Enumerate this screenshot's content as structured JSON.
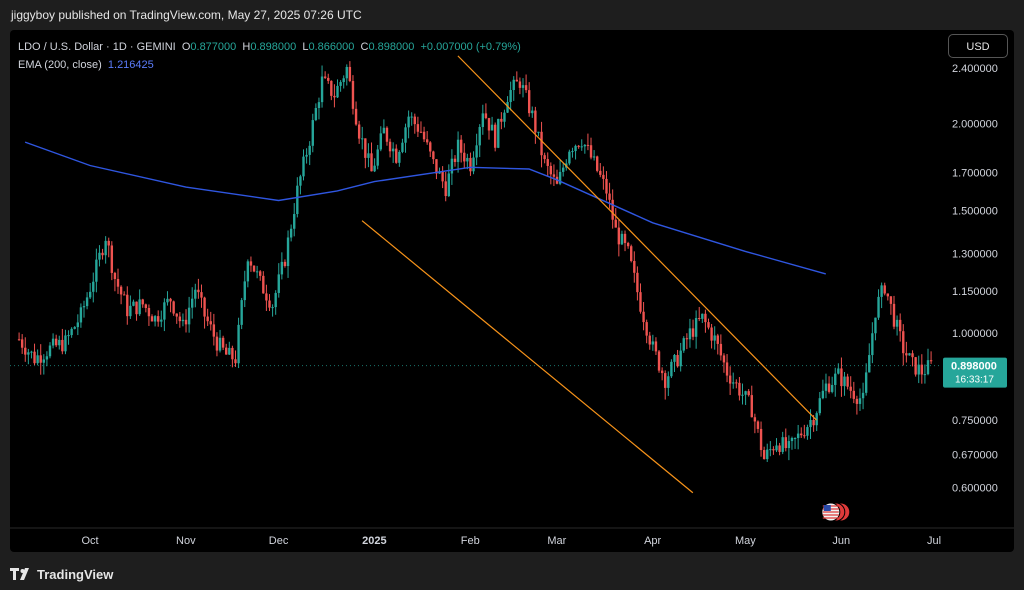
{
  "header": {
    "publish_text": "jiggyboy published on TradingView.com, May 27, 2025 07:26 UTC"
  },
  "legend": {
    "symbol": "LDO / U.S. Dollar · 1D · GEMINI",
    "open_label": "O",
    "open": "0.877000",
    "high_label": "H",
    "high": "0.898000",
    "low_label": "L",
    "low": "0.866000",
    "close_label": "C",
    "close": "0.898000",
    "change": "+0.007000 (+0.79%)",
    "ema_label": "EMA (200, close)",
    "ema_value": "1.216425"
  },
  "toolbar": {
    "currency": "USD"
  },
  "footer": {
    "brand": "TradingView",
    "logo_icon": "tradingview-logo-icon"
  },
  "colors": {
    "up": "#26a69a",
    "down": "#ef5350",
    "ema": "#2f56e0",
    "channel": "#f7931a",
    "price_label_bg": "#26a69a"
  },
  "chart_data": {
    "type": "candlestick",
    "price_scale": "log",
    "x": [
      "Oct",
      "Nov",
      "Dec",
      "2025",
      "Feb",
      "Mar",
      "Apr",
      "May",
      "Jun",
      "Jul"
    ],
    "y_ticks": [
      "2.400000",
      "2.000000",
      "1.700000",
      "1.500000",
      "1.300000",
      "1.150000",
      "1.000000",
      "0.750000",
      "0.670000",
      "0.600000"
    ],
    "last_price": "0.898000",
    "countdown": "16:33:17",
    "ylim": [
      0.55,
      2.6
    ],
    "series": [
      {
        "name": "EMA (200, close)",
        "type": "line",
        "points": [
          [
            "Sep 10",
            1.88
          ],
          [
            "Oct 1",
            1.74
          ],
          [
            "Nov 1",
            1.62
          ],
          [
            "Dec 1",
            1.55
          ],
          [
            "Dec 20",
            1.6
          ],
          [
            "2025",
            1.65
          ],
          [
            "Feb 1",
            1.73
          ],
          [
            "Feb 20",
            1.72
          ],
          [
            "Mar 1",
            1.66
          ],
          [
            "Apr 1",
            1.44
          ],
          [
            "May 1",
            1.31
          ],
          [
            "May 27",
            1.216
          ]
        ]
      },
      {
        "name": "close",
        "type": "candles",
        "closes": [
          [
            0,
            0.98
          ],
          [
            5,
            0.92
          ],
          [
            10,
            0.95
          ],
          [
            15,
            0.97
          ],
          [
            20,
            1.06
          ],
          [
            25,
            1.24
          ],
          [
            28,
            1.38
          ],
          [
            31,
            1.2
          ],
          [
            35,
            1.08
          ],
          [
            40,
            1.1
          ],
          [
            44,
            1.05
          ],
          [
            49,
            1.12
          ],
          [
            53,
            1.02
          ],
          [
            57,
            1.16
          ],
          [
            60,
            1.06
          ],
          [
            64,
            0.97
          ],
          [
            67,
            0.93
          ],
          [
            70,
            0.92
          ],
          [
            74,
            1.3
          ],
          [
            78,
            1.18
          ],
          [
            82,
            1.1
          ],
          [
            86,
            1.28
          ],
          [
            90,
            1.6
          ],
          [
            94,
            1.9
          ],
          [
            98,
            2.3
          ],
          [
            102,
            2.2
          ],
          [
            106,
            2.4
          ],
          [
            110,
            1.95
          ],
          [
            114,
            1.7
          ],
          [
            118,
            1.95
          ],
          [
            122,
            1.8
          ],
          [
            126,
            2.05
          ],
          [
            130,
            1.95
          ],
          [
            134,
            1.75
          ],
          [
            138,
            1.62
          ],
          [
            142,
            1.85
          ],
          [
            146,
            1.75
          ],
          [
            150,
            2.1
          ],
          [
            154,
            1.9
          ],
          [
            158,
            2.2
          ],
          [
            162,
            2.3
          ],
          [
            166,
            2.05
          ],
          [
            170,
            1.75
          ],
          [
            174,
            1.62
          ],
          [
            178,
            1.85
          ],
          [
            182,
            1.9
          ],
          [
            186,
            1.75
          ],
          [
            190,
            1.6
          ],
          [
            193,
            1.4
          ],
          [
            197,
            1.3
          ],
          [
            201,
            1.1
          ],
          [
            205,
            0.95
          ],
          [
            209,
            0.86
          ],
          [
            213,
            0.92
          ],
          [
            217,
            1.0
          ],
          [
            221,
            1.05
          ],
          [
            225,
            0.98
          ],
          [
            229,
            0.88
          ],
          [
            233,
            0.83
          ],
          [
            237,
            0.78
          ],
          [
            241,
            0.66
          ],
          [
            245,
            0.7
          ],
          [
            249,
            0.68
          ],
          [
            253,
            0.72
          ],
          [
            257,
            0.76
          ],
          [
            261,
            0.84
          ],
          [
            265,
            0.87
          ],
          [
            269,
            0.83
          ],
          [
            273,
            0.8
          ],
          [
            277,
            1.08
          ],
          [
            280,
            1.17
          ],
          [
            283,
            1.05
          ],
          [
            286,
            0.95
          ],
          [
            289,
            0.9
          ],
          [
            292,
            0.88
          ],
          [
            295,
            0.898
          ]
        ],
        "day_axis": "days since Sep 10, 2024"
      },
      {
        "name": "channel_upper",
        "type": "trendline",
        "points": [
          [
            "Jan 28",
            2.5
          ],
          [
            "May 24",
            0.75
          ]
        ]
      },
      {
        "name": "channel_lower",
        "type": "trendline",
        "points": [
          [
            "Dec 28",
            1.45
          ],
          [
            "Apr 14",
            0.59
          ]
        ]
      }
    ]
  }
}
